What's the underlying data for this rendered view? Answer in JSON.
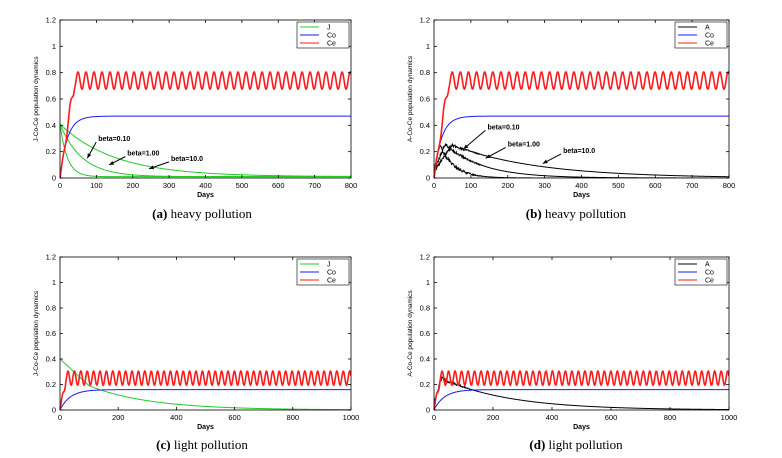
{
  "colors": {
    "J": "#22cc22",
    "A": "#000000",
    "Co": "#1a1aff",
    "Ce": "#ff1a1a",
    "axis": "#000000"
  },
  "chart_data": [
    {
      "id": "a",
      "type": "line",
      "caption_label": "(a)",
      "caption_text": "heavy pollution",
      "xlabel": "Days",
      "ylabel": "J-Co-Ce population dynamics",
      "xlim": [
        0,
        800
      ],
      "ylim": [
        0,
        1.2
      ],
      "xticks": [
        0,
        100,
        200,
        300,
        400,
        500,
        600,
        700,
        800
      ],
      "yticks": [
        0,
        0.2,
        0.4,
        0.6,
        0.8,
        1,
        1.2
      ],
      "legend": {
        "position": "top-right",
        "entries": [
          "J",
          "Co",
          "Ce"
        ]
      },
      "series": [
        {
          "name": "J",
          "kind": "decay",
          "start": 0.4,
          "beta_curves": [
            {
              "beta": "beta=0.10",
              "tau": 20
            },
            {
              "beta": "beta=1.00",
              "tau": 60
            },
            {
              "beta": "beta=10.0",
              "tau": 150
            }
          ]
        },
        {
          "name": "Co",
          "kind": "saturate",
          "plateau": 0.47,
          "tau": 20
        },
        {
          "name": "Ce",
          "kind": "oscillate",
          "mean": 0.74,
          "amplitude": 0.065,
          "period": 22,
          "rise": 40
        }
      ],
      "annotations": [
        {
          "text": "beta=0.10",
          "x": 105,
          "y": 0.28,
          "arrow_to": [
            75,
            0.15
          ]
        },
        {
          "text": "beta=1.00",
          "x": 185,
          "y": 0.17,
          "arrow_to": [
            135,
            0.1
          ]
        },
        {
          "text": "beta=10.0",
          "x": 305,
          "y": 0.13,
          "arrow_to": [
            245,
            0.07
          ]
        }
      ]
    },
    {
      "id": "b",
      "type": "line",
      "caption_label": "(b)",
      "caption_text": "heavy pollution",
      "xlabel": "Days",
      "ylabel": "A-Co-Ce population dynamics",
      "xlim": [
        0,
        800
      ],
      "ylim": [
        0,
        1.2
      ],
      "xticks": [
        0,
        100,
        200,
        300,
        400,
        500,
        600,
        700,
        800
      ],
      "yticks": [
        0,
        0.2,
        0.4,
        0.6,
        0.8,
        1,
        1.2
      ],
      "legend": {
        "position": "top-right",
        "entries": [
          "A",
          "Co",
          "Ce"
        ]
      },
      "series": [
        {
          "name": "A",
          "kind": "hump",
          "beta_curves": [
            {
              "beta": "beta=0.10",
              "peak": 0.25,
              "tpeak": 15,
              "tau": 40
            },
            {
              "beta": "beta=1.00",
              "peak": 0.26,
              "tpeak": 30,
              "tau": 100
            },
            {
              "beta": "beta=10.0",
              "peak": 0.25,
              "tpeak": 50,
              "tau": 230
            }
          ]
        },
        {
          "name": "Co",
          "kind": "saturate",
          "plateau": 0.47,
          "tau": 20
        },
        {
          "name": "Ce",
          "kind": "oscillate",
          "mean": 0.74,
          "amplitude": 0.065,
          "period": 22,
          "rise": 40
        }
      ],
      "annotations": [
        {
          "text": "beta=0.10",
          "x": 145,
          "y": 0.37,
          "arrow_to": [
            80,
            0.22
          ]
        },
        {
          "text": "beta=1.00",
          "x": 200,
          "y": 0.24,
          "arrow_to": [
            140,
            0.15
          ]
        },
        {
          "text": "beta=10.0",
          "x": 350,
          "y": 0.19,
          "arrow_to": [
            295,
            0.11
          ]
        }
      ]
    },
    {
      "id": "c",
      "type": "line",
      "caption_label": "(c)",
      "caption_text": "light pollution",
      "xlabel": "Days",
      "ylabel": "J-Co-Ce population dynamics",
      "xlim": [
        0,
        1000
      ],
      "ylim": [
        0,
        1.2
      ],
      "xticks": [
        0,
        200,
        400,
        600,
        800,
        1000
      ],
      "yticks": [
        0,
        0.2,
        0.4,
        0.6,
        0.8,
        1,
        1.2
      ],
      "legend": {
        "position": "top-right",
        "entries": [
          "J",
          "Co",
          "Ce"
        ]
      },
      "series": [
        {
          "name": "J",
          "kind": "decay_mid",
          "start": 0.4,
          "knee": 0.19,
          "tknee": 100,
          "tau": 210
        },
        {
          "name": "Co",
          "kind": "saturate",
          "plateau": 0.16,
          "tau": 35
        },
        {
          "name": "Ce",
          "kind": "oscillate",
          "mean": 0.25,
          "amplitude": 0.055,
          "period": 22,
          "rise": 20
        }
      ],
      "annotations": []
    },
    {
      "id": "d",
      "type": "line",
      "caption_label": "(d)",
      "caption_text": "light pollution",
      "xlabel": "Days",
      "ylabel": "A-Co-Ce population dynamics",
      "xlim": [
        0,
        1000
      ],
      "ylim": [
        0,
        1.2
      ],
      "xticks": [
        0,
        200,
        400,
        600,
        800,
        1000
      ],
      "yticks": [
        0,
        0.2,
        0.4,
        0.6,
        0.8,
        1,
        1.2
      ],
      "legend": {
        "position": "top-right",
        "entries": [
          "A",
          "Co",
          "Ce"
        ]
      },
      "series": [
        {
          "name": "A",
          "kind": "hump_single",
          "peak": 0.25,
          "tpeak": 25,
          "tau": 230
        },
        {
          "name": "Co",
          "kind": "saturate",
          "plateau": 0.16,
          "tau": 35
        },
        {
          "name": "Ce",
          "kind": "oscillate",
          "mean": 0.25,
          "amplitude": 0.055,
          "period": 22,
          "rise": 20
        }
      ],
      "annotations": []
    }
  ]
}
